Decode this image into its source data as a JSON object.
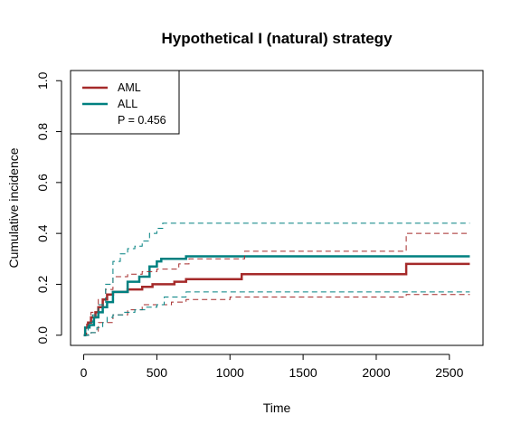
{
  "chart_data": {
    "type": "line",
    "title": "Hypothetical I (natural) strategy",
    "xlabel": "Time",
    "ylabel": "Cumulative incidence",
    "xlim": [
      -90,
      2730
    ],
    "ylim": [
      -0.04,
      1.04
    ],
    "xticks": [
      0,
      500,
      1000,
      1500,
      2000,
      2500
    ],
    "yticks": [
      0.0,
      0.2,
      0.4,
      0.6,
      0.8,
      1.0
    ],
    "xtick_labels": [
      "0",
      "500",
      "1000",
      "1500",
      "2000",
      "2500"
    ],
    "ytick_labels": [
      "0.0",
      "0.2",
      "0.4",
      "0.6",
      "0.8",
      "1.0"
    ],
    "grid": false,
    "legend_position": "top-left",
    "annotation": "P = 0.456",
    "series": [
      {
        "name": "AML",
        "color": "#a52a2a",
        "style": "solid",
        "points": [
          [
            0,
            0.0
          ],
          [
            10,
            0.03
          ],
          [
            30,
            0.05
          ],
          [
            50,
            0.07
          ],
          [
            80,
            0.09
          ],
          [
            100,
            0.11
          ],
          [
            130,
            0.14
          ],
          [
            160,
            0.16
          ],
          [
            200,
            0.17
          ],
          [
            250,
            0.17
          ],
          [
            300,
            0.18
          ],
          [
            400,
            0.19
          ],
          [
            470,
            0.2
          ],
          [
            620,
            0.21
          ],
          [
            700,
            0.22
          ],
          [
            1080,
            0.24
          ],
          [
            2200,
            0.24
          ],
          [
            2205,
            0.28
          ],
          [
            2640,
            0.28
          ]
        ]
      },
      {
        "name": "ALL",
        "color": "#008080",
        "style": "solid",
        "points": [
          [
            0,
            0.0
          ],
          [
            10,
            0.03
          ],
          [
            40,
            0.04
          ],
          [
            70,
            0.07
          ],
          [
            100,
            0.09
          ],
          [
            130,
            0.11
          ],
          [
            160,
            0.13
          ],
          [
            200,
            0.17
          ],
          [
            300,
            0.21
          ],
          [
            380,
            0.23
          ],
          [
            450,
            0.27
          ],
          [
            500,
            0.29
          ],
          [
            530,
            0.3
          ],
          [
            700,
            0.31
          ],
          [
            2640,
            0.31
          ]
        ]
      },
      {
        "color": "#a52a2a",
        "style": "dashed",
        "points": [
          [
            0,
            0.0
          ],
          [
            20,
            0.05
          ],
          [
            50,
            0.09
          ],
          [
            100,
            0.14
          ],
          [
            150,
            0.18
          ],
          [
            200,
            0.23
          ],
          [
            300,
            0.24
          ],
          [
            400,
            0.25
          ],
          [
            500,
            0.26
          ],
          [
            650,
            0.28
          ],
          [
            720,
            0.3
          ],
          [
            1100,
            0.33
          ],
          [
            2200,
            0.33
          ],
          [
            2205,
            0.4
          ],
          [
            2640,
            0.4
          ]
        ]
      },
      {
        "color": "#a52a2a",
        "style": "dashed",
        "points": [
          [
            0,
            0.0
          ],
          [
            50,
            0.01
          ],
          [
            100,
            0.05
          ],
          [
            200,
            0.08
          ],
          [
            300,
            0.1
          ],
          [
            400,
            0.12
          ],
          [
            600,
            0.13
          ],
          [
            700,
            0.14
          ],
          [
            1000,
            0.15
          ],
          [
            2200,
            0.15
          ],
          [
            2205,
            0.16
          ],
          [
            2640,
            0.16
          ]
        ]
      },
      {
        "color": "#008080",
        "style": "dashed",
        "points": [
          [
            0,
            0.0
          ],
          [
            30,
            0.05
          ],
          [
            60,
            0.08
          ],
          [
            100,
            0.12
          ],
          [
            150,
            0.2
          ],
          [
            200,
            0.29
          ],
          [
            250,
            0.32
          ],
          [
            300,
            0.34
          ],
          [
            350,
            0.35
          ],
          [
            400,
            0.37
          ],
          [
            450,
            0.4
          ],
          [
            500,
            0.42
          ],
          [
            540,
            0.44
          ],
          [
            2640,
            0.44
          ]
        ]
      },
      {
        "color": "#008080",
        "style": "dashed",
        "points": [
          [
            0,
            0.0
          ],
          [
            50,
            0.01
          ],
          [
            90,
            0.03
          ],
          [
            130,
            0.05
          ],
          [
            160,
            0.07
          ],
          [
            200,
            0.08
          ],
          [
            270,
            0.09
          ],
          [
            350,
            0.1
          ],
          [
            420,
            0.11
          ],
          [
            500,
            0.12
          ],
          [
            550,
            0.15
          ],
          [
            700,
            0.17
          ],
          [
            2640,
            0.17
          ]
        ]
      }
    ]
  }
}
